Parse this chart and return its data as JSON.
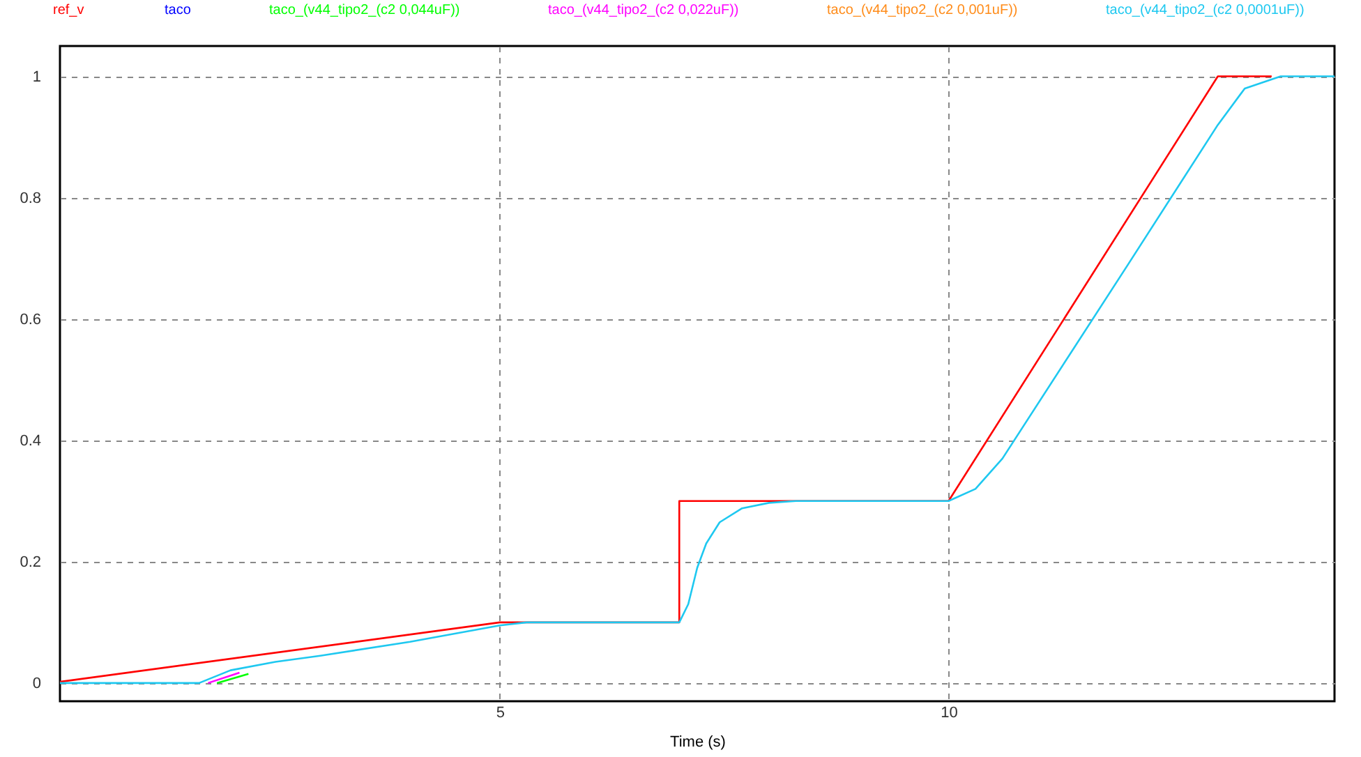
{
  "chart_data": {
    "type": "line",
    "xlabel": "Time (s)",
    "xlim": [
      0.1,
      14.3
    ],
    "ylim": [
      -0.03,
      1.05
    ],
    "xticks": [
      5,
      10
    ],
    "yticks": [
      0,
      0.2,
      0.4,
      0.6,
      0.8,
      1
    ],
    "grid": true,
    "legend": "top",
    "marker": "none",
    "line_style": "solid",
    "series": [
      {
        "name": "ref_v",
        "color": "#ff0000",
        "x": [
          0.1,
          5,
          5,
          7,
          7,
          10,
          13,
          13.6
        ],
        "values": [
          0.002,
          0.1,
          0.1,
          0.1,
          0.3,
          0.3,
          1,
          1
        ]
      },
      {
        "name": "taco",
        "color": "#0000ff"
      },
      {
        "name": "taco_(v44_tipo2_(c2 0,044uF))",
        "color": "#00ff00",
        "x": [
          1.85,
          2.2
        ],
        "values": [
          0,
          0.015
        ]
      },
      {
        "name": "taco_(v44_tipo2_(c2 0,022uF))",
        "color": "#ff00ff",
        "x": [
          1.75,
          2.1
        ],
        "values": [
          0,
          0.017
        ]
      },
      {
        "name": "taco_(v44_tipo2_(c2 0,001uF))",
        "color": "#ff8c1a"
      },
      {
        "name": "taco_(v44_tipo2_(c2 0,0001uF))",
        "color": "#1ec8f0",
        "x": [
          0.1,
          1.65,
          2.0,
          2.5,
          3,
          4,
          5,
          5.3,
          7.0,
          7.1,
          7.2,
          7.3,
          7.45,
          7.7,
          8,
          8.3,
          10,
          10.3,
          10.6,
          12,
          13,
          13.3,
          13.7,
          14.3
        ],
        "values": [
          0,
          0,
          0.021,
          0.035,
          0.045,
          0.068,
          0.095,
          0.1,
          0.1,
          0.13,
          0.19,
          0.23,
          0.265,
          0.288,
          0.297,
          0.3,
          0.3,
          0.32,
          0.37,
          0.69,
          0.92,
          0.98,
          1,
          1
        ]
      }
    ]
  }
}
